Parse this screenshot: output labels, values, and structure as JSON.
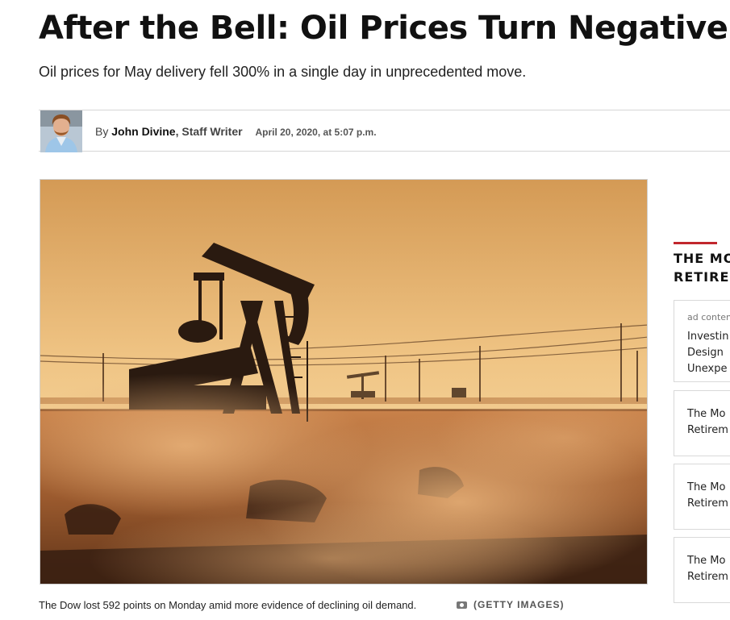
{
  "article": {
    "headline": "After the Bell: Oil Prices Turn Negative",
    "subheadline": "Oil prices for May delivery fell 300% in a single day in unprecedented move.",
    "byline": {
      "prefix": "By",
      "author": "John Divine",
      "role": "Staff Writer",
      "date": "April 20, 2020, at 5:07 p.m."
    },
    "image": {
      "caption": "The Dow lost 592 points on Monday amid more evidence of declining oil demand.",
      "credit": "(GETTY IMAGES)"
    }
  },
  "sidebar": {
    "title_line1": "THE MO",
    "title_line2": "RETIRE",
    "accent_color": "#c1272d",
    "cards": [
      {
        "ad_label": "ad conten",
        "text": "Investin\nDesign\nUnexpe"
      },
      {
        "text": "The Mo\nRetirem"
      },
      {
        "text": "The Mo\nRetirem"
      },
      {
        "text": "The Mo\nRetirem"
      }
    ]
  },
  "icons": {
    "camera": "camera-icon"
  }
}
